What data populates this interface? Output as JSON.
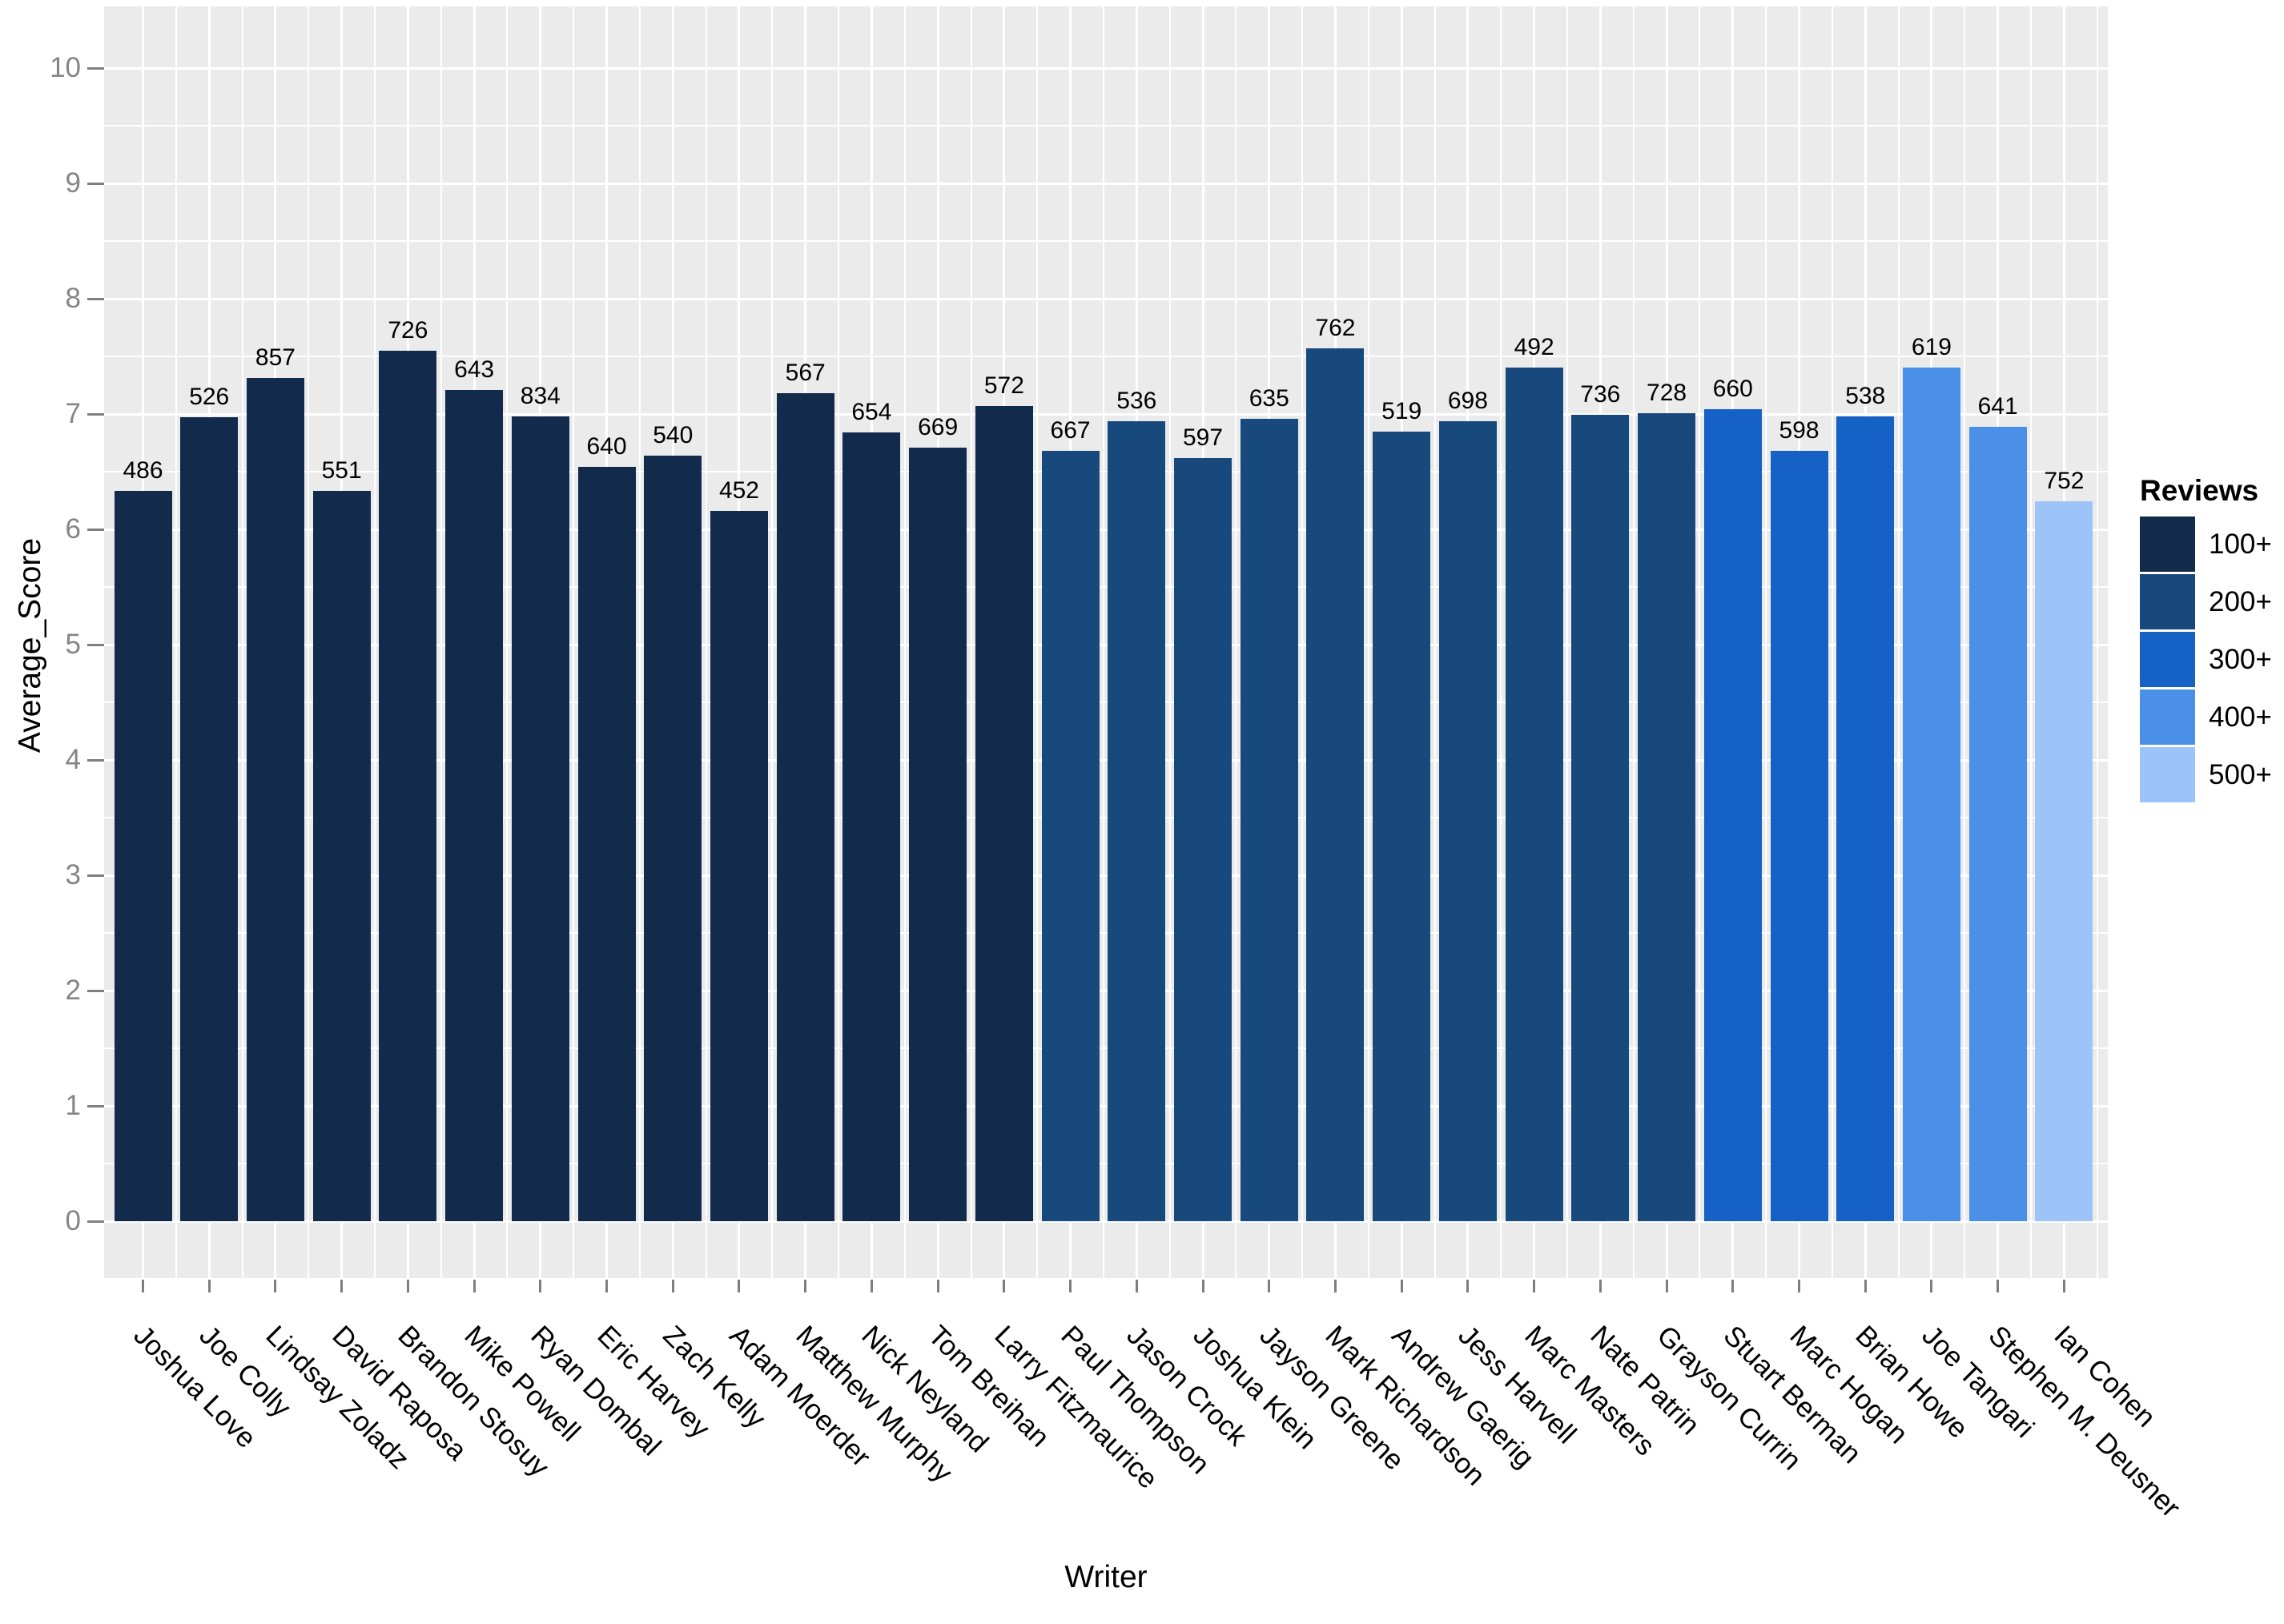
{
  "chart_data": {
    "type": "bar",
    "title": "",
    "xlabel": "Writer",
    "ylabel": "Average_Score",
    "ylim": [
      0,
      10
    ],
    "yticks": [
      "0",
      "1",
      "2",
      "3",
      "4",
      "5",
      "6",
      "7",
      "8",
      "9",
      "10"
    ],
    "grid": "on",
    "panel_bg": "#EBEBEB",
    "grid_color": "#FFFFFF",
    "axis_text_color": "#858585",
    "tick_color": "#7E7E7E",
    "legend": {
      "title": "Reviews",
      "position": "right",
      "entries": [
        {
          "label": "100+",
          "color": "#122B4C"
        },
        {
          "label": "200+",
          "color": "#17497D"
        },
        {
          "label": "300+",
          "color": "#1561C6"
        },
        {
          "label": "400+",
          "color": "#4B90E8"
        },
        {
          "label": "500+",
          "color": "#9DC4F8"
        }
      ]
    },
    "bars": [
      {
        "writer": "Joshua Love",
        "reviews": 486,
        "avg_score": 6.33,
        "group": "100+"
      },
      {
        "writer": "Joe Colly",
        "reviews": 526,
        "avg_score": 6.97,
        "group": "100+"
      },
      {
        "writer": "Lindsay Zoladz",
        "reviews": 857,
        "avg_score": 7.31,
        "group": "100+"
      },
      {
        "writer": "David Raposa",
        "reviews": 551,
        "avg_score": 6.33,
        "group": "100+"
      },
      {
        "writer": "Brandon Stosuy",
        "reviews": 726,
        "avg_score": 7.55,
        "group": "100+"
      },
      {
        "writer": "Mike Powell",
        "reviews": 643,
        "avg_score": 7.21,
        "group": "100+"
      },
      {
        "writer": "Ryan Dombal",
        "reviews": 834,
        "avg_score": 6.98,
        "group": "100+"
      },
      {
        "writer": "Eric Harvey",
        "reviews": 640,
        "avg_score": 6.54,
        "group": "100+"
      },
      {
        "writer": "Zach Kelly",
        "reviews": 540,
        "avg_score": 6.64,
        "group": "100+"
      },
      {
        "writer": "Adam Moerder",
        "reviews": 452,
        "avg_score": 6.16,
        "group": "100+"
      },
      {
        "writer": "Matthew Murphy",
        "reviews": 567,
        "avg_score": 7.18,
        "group": "100+"
      },
      {
        "writer": "Nick Neyland",
        "reviews": 654,
        "avg_score": 6.84,
        "group": "100+"
      },
      {
        "writer": "Tom Breihan",
        "reviews": 669,
        "avg_score": 6.71,
        "group": "100+"
      },
      {
        "writer": "Larry Fitzmaurice",
        "reviews": 572,
        "avg_score": 7.07,
        "group": "100+"
      },
      {
        "writer": "Paul Thompson",
        "reviews": 667,
        "avg_score": 6.68,
        "group": "200+"
      },
      {
        "writer": "Jason Crock",
        "reviews": 536,
        "avg_score": 6.94,
        "group": "200+"
      },
      {
        "writer": "Joshua Klein",
        "reviews": 597,
        "avg_score": 6.62,
        "group": "200+"
      },
      {
        "writer": "Jayson Greene",
        "reviews": 635,
        "avg_score": 6.96,
        "group": "200+"
      },
      {
        "writer": "Mark Richardson",
        "reviews": 762,
        "avg_score": 7.57,
        "group": "200+"
      },
      {
        "writer": "Andrew Gaerig",
        "reviews": 519,
        "avg_score": 6.85,
        "group": "200+"
      },
      {
        "writer": "Jess Harvell",
        "reviews": 698,
        "avg_score": 6.94,
        "group": "200+"
      },
      {
        "writer": "Marc Masters",
        "reviews": 492,
        "avg_score": 7.4,
        "group": "200+"
      },
      {
        "writer": "Nate Patrin",
        "reviews": 736,
        "avg_score": 6.99,
        "group": "200+"
      },
      {
        "writer": "Grayson Currin",
        "reviews": 728,
        "avg_score": 7.01,
        "group": "200+"
      },
      {
        "writer": "Stuart Berman",
        "reviews": 660,
        "avg_score": 7.04,
        "group": "300+"
      },
      {
        "writer": "Marc Hogan",
        "reviews": 598,
        "avg_score": 6.68,
        "group": "300+"
      },
      {
        "writer": "Brian Howe",
        "reviews": 538,
        "avg_score": 6.98,
        "group": "300+"
      },
      {
        "writer": "Joe Tangari",
        "reviews": 619,
        "avg_score": 7.4,
        "group": "400+"
      },
      {
        "writer": "Stephen M. Deusner",
        "reviews": 641,
        "avg_score": 6.89,
        "group": "400+"
      },
      {
        "writer": "Ian Cohen",
        "reviews": 752,
        "avg_score": 6.24,
        "group": "500+"
      }
    ]
  }
}
